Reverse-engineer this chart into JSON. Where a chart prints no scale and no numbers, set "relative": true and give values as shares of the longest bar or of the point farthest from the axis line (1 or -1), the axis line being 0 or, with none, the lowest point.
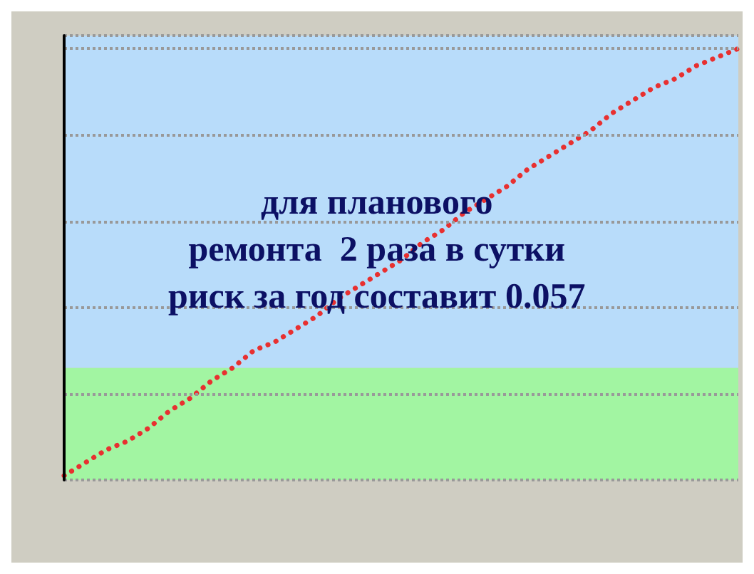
{
  "chart_data": {
    "type": "line",
    "relative": true,
    "marker": "none",
    "line_style": "dotted",
    "grid": "y",
    "categories": [
      null,
      null,
      null,
      null,
      null,
      null,
      null,
      null,
      null,
      null,
      null,
      null,
      null,
      null,
      null,
      null,
      null,
      null,
      null,
      null,
      null,
      null,
      null,
      null,
      null,
      null,
      null,
      null,
      null,
      null,
      null,
      null,
      null
    ],
    "series": [
      {
        "color": "#e83030",
        "values": [
          0.01,
          0.04,
          0.07,
          0.09,
          0.12,
          0.16,
          0.19,
          0.23,
          0.26,
          0.3,
          0.32,
          0.35,
          0.38,
          0.42,
          0.45,
          0.48,
          0.51,
          0.55,
          0.58,
          0.62,
          0.65,
          0.68,
          0.72,
          0.75,
          0.78,
          0.81,
          0.85,
          0.88,
          0.91,
          0.93,
          0.96,
          0.98,
          1
        ]
      }
    ],
    "bands": [
      {
        "axis": "y",
        "from": 0,
        "to": 0.26,
        "color": "#a2f5a2"
      },
      {
        "axis": "y",
        "from": 0.26,
        "to": 1.03,
        "color": "#b8dcfa"
      }
    ],
    "annotations": [
      "для планового\nремонта  2 раза в сутки\nриск за год составит 0.057"
    ]
  }
}
